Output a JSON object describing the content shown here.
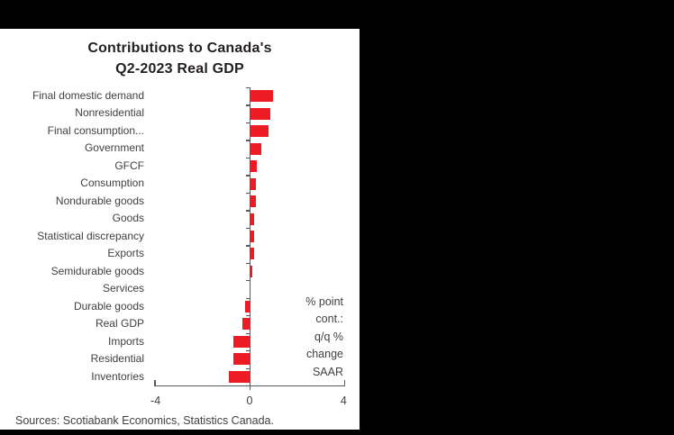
{
  "window": {
    "background_color": "#000000",
    "panel_color": "#FFFFFF"
  },
  "chart": {
    "title_line1": "Contributions to Canada's",
    "title_line2": "Q2-2023 Real GDP",
    "annotation_lines": [
      "% point",
      "cont.:",
      "q/q %",
      "change",
      "SAAR"
    ],
    "source": "Sources: Scotiabank Economics, Statistics Canada.",
    "colors": {
      "bar": "#ED1C24",
      "axis": "#58595B",
      "label_text": "#414042",
      "title_text": "#231F20"
    }
  },
  "chart_data": {
    "type": "bar",
    "orientation": "horizontal",
    "title": "Contributions to Canada's Q2-2023 Real GDP",
    "xlabel": "% point cont.: q/q % change SAAR",
    "ylabel": "",
    "xlim": [
      -4,
      4
    ],
    "x_ticks": [
      -4,
      0,
      4
    ],
    "x_tick_labels": [
      "-4",
      "0",
      "4"
    ],
    "grid": false,
    "legend": "none",
    "categories": [
      "Final domestic demand",
      "Nonresidential",
      "Final consumption...",
      "Government",
      "GFCF",
      "Consumption",
      "Nondurable goods",
      "Goods",
      "Statistical discrepancy",
      "Exports",
      "Semidurable goods",
      "Services",
      "Durable goods",
      "Real GDP",
      "Imports",
      "Residential",
      "Inventories"
    ],
    "values": [
      1.0,
      0.9,
      0.8,
      0.5,
      0.3,
      0.25,
      0.25,
      0.2,
      0.2,
      0.2,
      0.1,
      0.0,
      -0.2,
      -0.3,
      -0.7,
      -0.7,
      -0.9
    ]
  }
}
